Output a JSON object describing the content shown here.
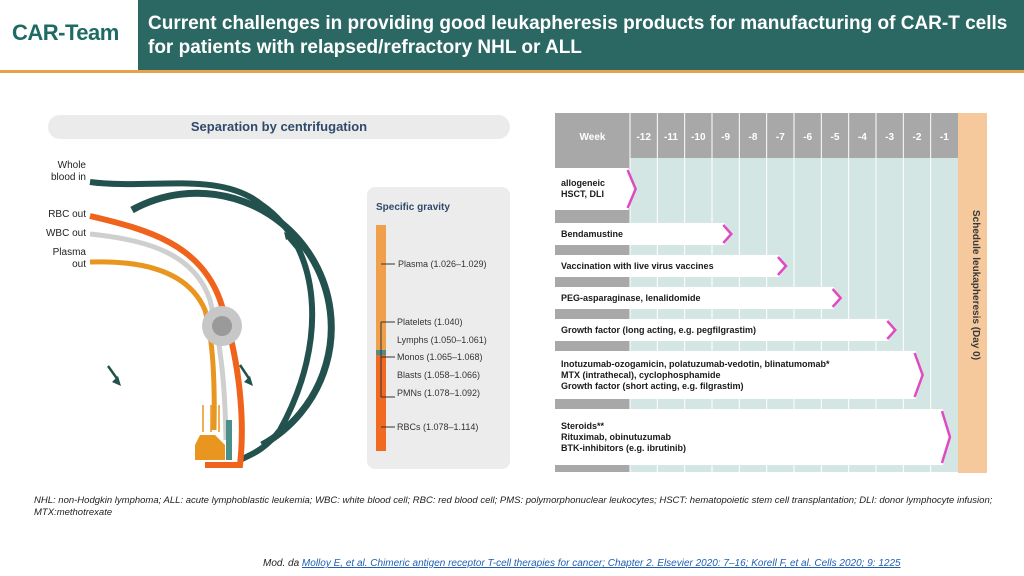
{
  "header": {
    "logo_text": "CAR-Team",
    "title": "Current challenges in providing good leukapheresis products for manufacturing of CAR-T cells for patients with relapsed/refractory NHL or ALL"
  },
  "centrifugation": {
    "title": "Separation by centrifugation",
    "inputs": [
      "Whole blood in",
      "RBC out",
      "WBC out",
      "Plasma out"
    ],
    "specific_gravity": {
      "title": "Specific gravity",
      "items": [
        "Plasma (1.026–1.029)",
        "Platelets (1.040)",
        "Lymphs (1.050–1.061)",
        "Monos (1.065–1.068)",
        "Blasts (1.058–1.066)",
        "PMNs (1.078–1.092)",
        "RBCs (1.078–1.114)"
      ]
    }
  },
  "timeline": {
    "header_label": "Week",
    "weeks": [
      "-12",
      "-11",
      "-10",
      "-9",
      "-8",
      "-7",
      "-6",
      "-5",
      "-4",
      "-3",
      "-2",
      "-1"
    ],
    "schedule_label": "Schedule leukapheresis (Day 0)",
    "rows": [
      {
        "lines": [
          "allogeneic",
          "HSCT, DLI"
        ],
        "end_week": -12
      },
      {
        "lines": [
          "Bendamustine"
        ],
        "end_week": -9
      },
      {
        "lines": [
          "Vaccination with live virus vaccines"
        ],
        "end_week": -7
      },
      {
        "lines": [
          "PEG-asparaginase, lenalidomide"
        ],
        "end_week": -5
      },
      {
        "lines": [
          "Growth factor (long acting, e.g. pegfilgrastim)"
        ],
        "end_week": -3
      },
      {
        "lines": [
          "Inotuzumab-ozogamicin, polatuzumab-vedotin, blinatumomab*",
          "MTX (intrathecal), cyclophosphamide",
          "Growth factor (short acting, e.g. filgrastim)"
        ],
        "end_week": -2
      },
      {
        "lines": [
          "Steroids**",
          "Rituximab, obinutuzumab",
          "BTK-inhibitors (e.g. ibrutinib)"
        ],
        "end_week": -1
      }
    ]
  },
  "footer": {
    "abbreviations": "NHL: non-Hodgkin lymphoma; ALL: acute lymphoblastic leukemia; WBC: white blood cell; RBC: red blood cell; PMS: polymorphonuclear leukocytes; HSCT: hematopoietic stem cell transplantation; DLI: donor lymphocyte infusion; MTX:methotrexate",
    "source_prefix": "Mod. da",
    "source_link": "Molloy E, et al. Chimeric antigen receptor T-cell therapies for cancer; Chapter 2. Elsevier 2020: 7–16; Korell F, et al. Cells 2020; 9: 1225"
  },
  "colors": {
    "teal": "#2b6864",
    "orange": "#e8821f",
    "grid": "#cfe2e0",
    "arrow": "#e04ac0"
  }
}
